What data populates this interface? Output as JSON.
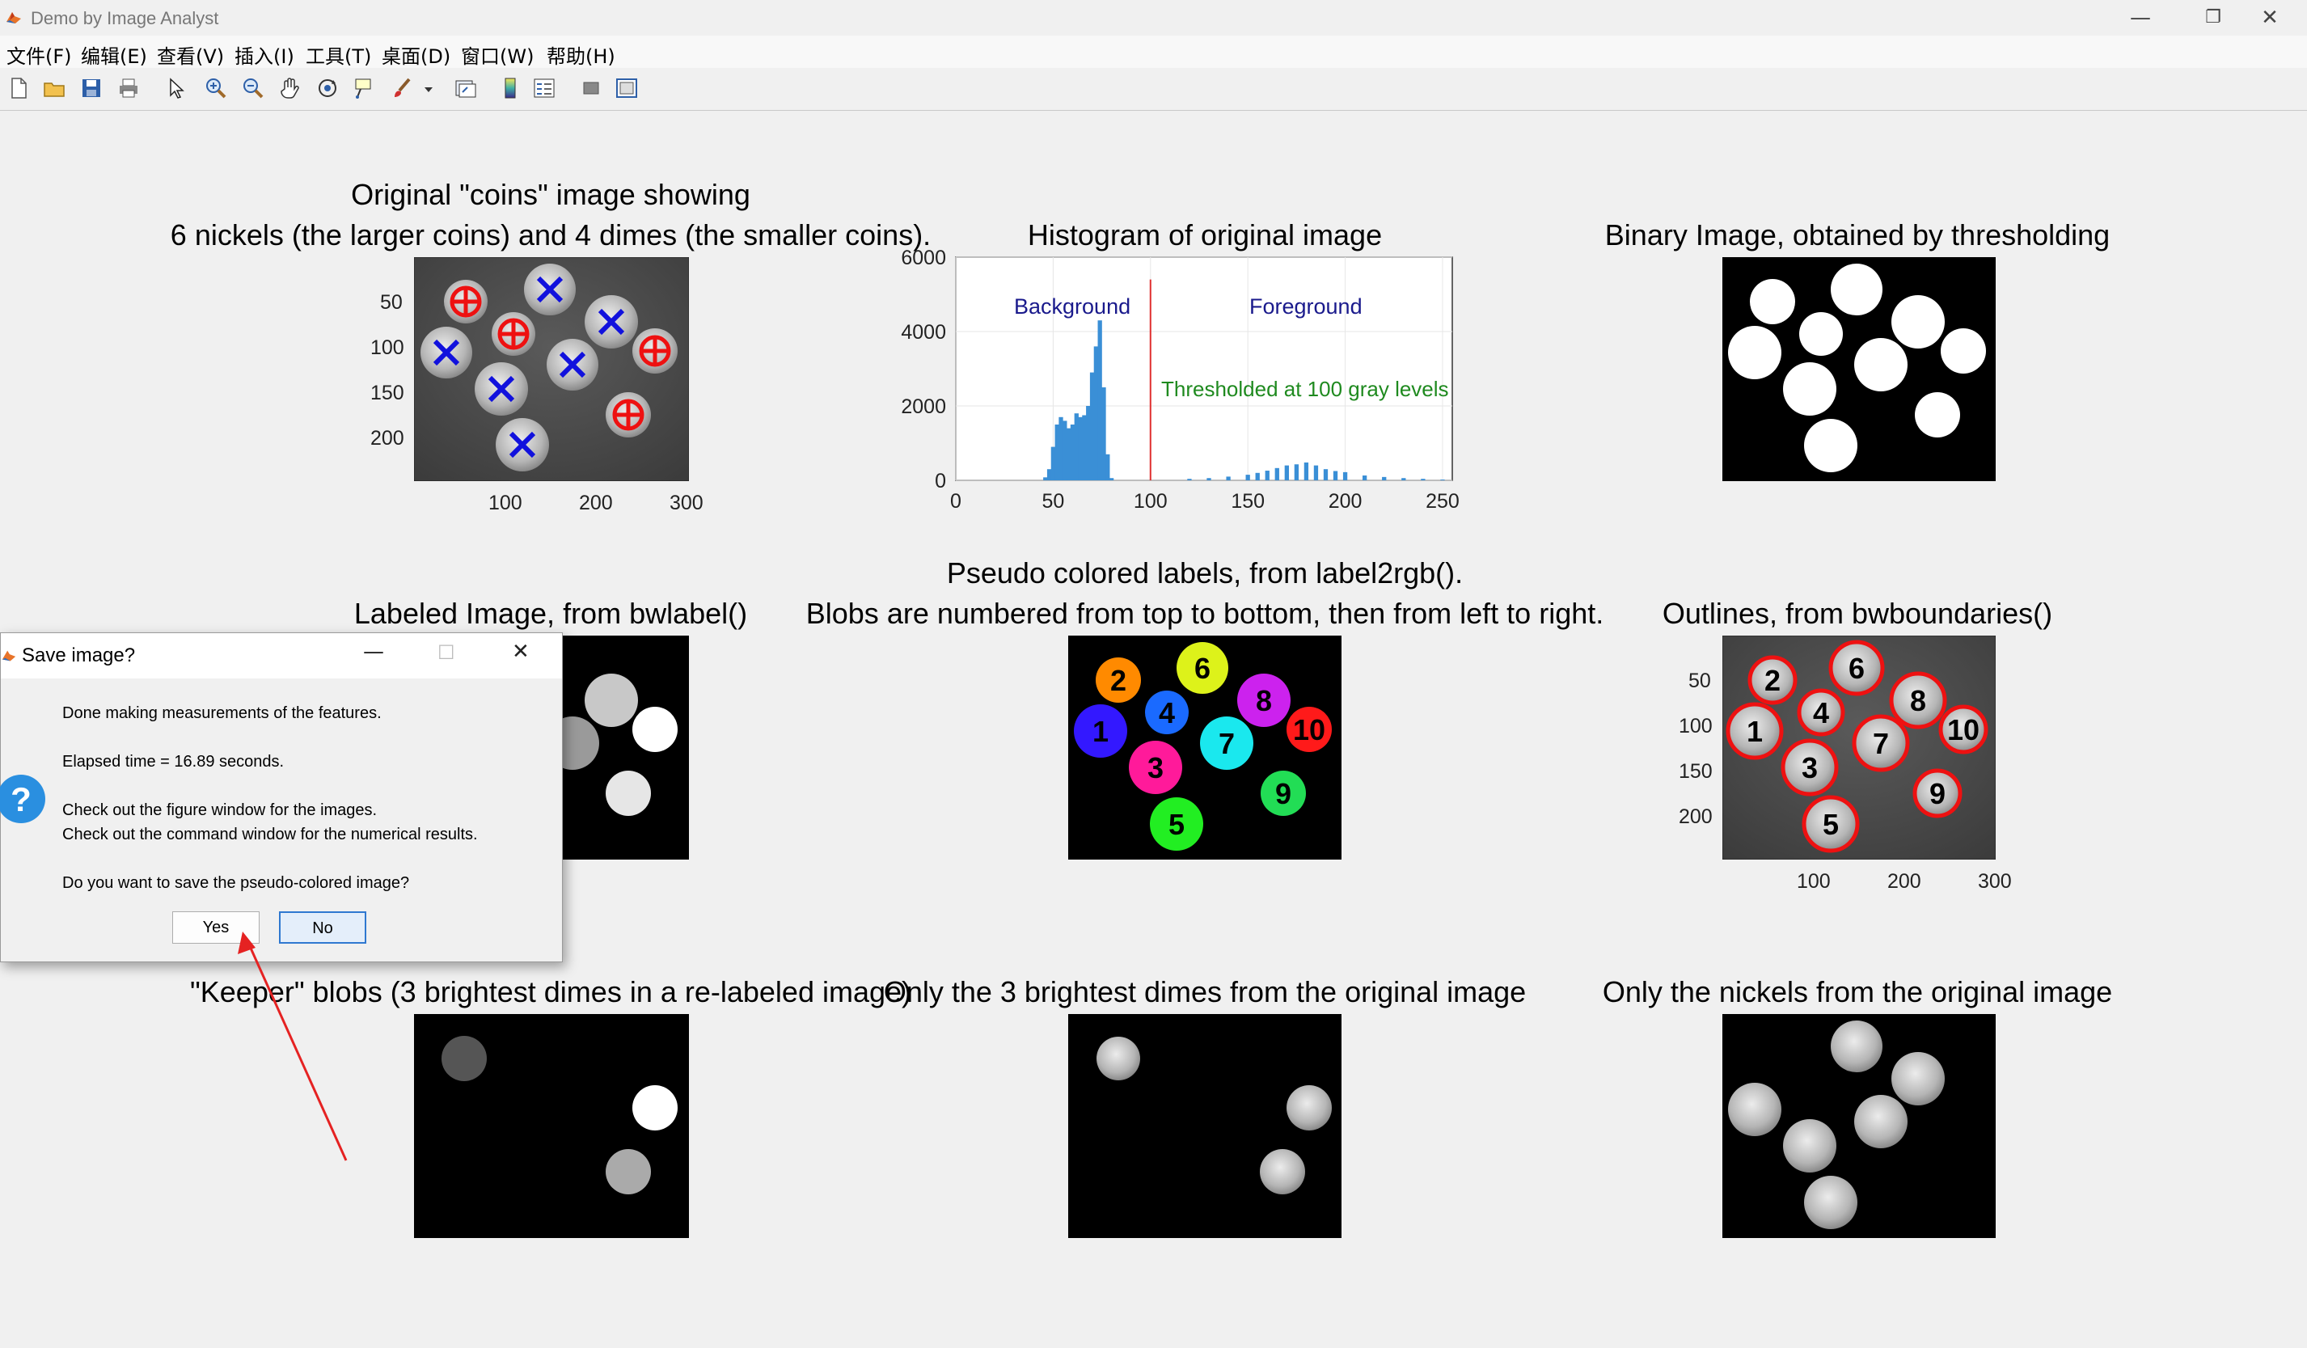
{
  "window": {
    "title": "Demo by Image Analyst",
    "minimize": "—",
    "restore": "❐",
    "close": "✕"
  },
  "menu": [
    "文件(F)",
    "编辑(E)",
    "查看(V)",
    "插入(I)",
    "工具(T)",
    "桌面(D)",
    "窗口(W)",
    "帮助(H)"
  ],
  "toolbar_icons": [
    "new-file-icon",
    "open-folder-icon",
    "save-icon",
    "print-icon",
    "pointer-icon",
    "zoom-in-icon",
    "zoom-out-icon",
    "pan-icon",
    "rotate-3d-icon",
    "data-cursor-icon",
    "brush-icon",
    "dropdown-icon",
    "link-plot-icon",
    "colorbar-icon",
    "legend-icon",
    "hide-plot-tools-icon",
    "show-plot-tools-icon"
  ],
  "figures": {
    "original": {
      "title_line1": "Original \"coins\" image showing",
      "title_line2": "6 nickels (the larger coins) and 4 dimes (the smaller coins).",
      "y_ticks": [
        "50",
        "100",
        "150",
        "200"
      ],
      "x_ticks": [
        "100",
        "200",
        "300"
      ]
    },
    "histogram": {
      "title": "Histogram of original image",
      "label_background": "Background",
      "label_foreground": "Foreground",
      "label_threshold": "Thresholded at 100 gray levels"
    },
    "binary": {
      "title": "Binary Image, obtained by thresholding"
    },
    "labeled": {
      "title": "Labeled Image, from bwlabel()"
    },
    "pseudo": {
      "title_line1": "Pseudo colored labels, from label2rgb().",
      "title_line2": "Blobs are numbered from top to bottom, then from left to right.",
      "blob_labels": [
        "1",
        "2",
        "3",
        "4",
        "5",
        "6",
        "7",
        "8",
        "9",
        "10"
      ]
    },
    "outlines": {
      "title": "Outlines, from bwboundaries()",
      "y_ticks": [
        "50",
        "100",
        "150",
        "200"
      ],
      "x_ticks": [
        "100",
        "200",
        "300"
      ],
      "blob_labels": [
        "1",
        "2",
        "3",
        "4",
        "5",
        "6",
        "7",
        "8",
        "9",
        "10"
      ]
    },
    "keeper": {
      "title": "\"Keeper\" blobs (3 brightest dimes in a re-labeled image)"
    },
    "dimes": {
      "title": "Only the 3 brightest dimes from the original image"
    },
    "nickels": {
      "title": "Only the nickels from the original image"
    }
  },
  "chart_data": {
    "type": "bar",
    "title": "Histogram of original image",
    "xlabel": "",
    "ylabel": "",
    "xlim": [
      0,
      255
    ],
    "ylim": [
      0,
      6000
    ],
    "x_ticks": [
      0,
      50,
      100,
      150,
      200,
      250
    ],
    "y_ticks": [
      0,
      2000,
      4000,
      6000
    ],
    "threshold": 100,
    "annotations": [
      "Background",
      "Foreground",
      "Thresholded at 100 gray levels"
    ],
    "x": [
      46,
      48,
      50,
      52,
      54,
      56,
      58,
      60,
      62,
      64,
      66,
      68,
      70,
      72,
      74,
      76,
      78,
      80,
      120,
      130,
      140,
      150,
      155,
      160,
      165,
      170,
      175,
      180,
      185,
      190,
      195,
      200,
      210,
      220,
      230,
      240,
      250
    ],
    "values": [
      80,
      300,
      900,
      1500,
      1700,
      1600,
      1400,
      1500,
      1800,
      1700,
      1750,
      2000,
      2900,
      3600,
      4300,
      2500,
      700,
      60,
      40,
      60,
      100,
      150,
      200,
      260,
      330,
      400,
      430,
      480,
      400,
      300,
      250,
      220,
      130,
      90,
      60,
      40,
      20
    ],
    "bar_color": "#3a8fd6",
    "threshold_color": "#e03030"
  },
  "dialog": {
    "title": "Save image?",
    "line1": "Done making measurements of the features.",
    "line2": "Elapsed time = 16.89 seconds.",
    "line3": "Check out the figure window for the images.",
    "line4": "Check out the command window for the numerical results.",
    "line5": "Do you want to save the pseudo-colored image?",
    "yes": "Yes",
    "no": "No",
    "minimize": "—",
    "maximize": "☐",
    "close": "✕",
    "icon_glyph": "?"
  }
}
